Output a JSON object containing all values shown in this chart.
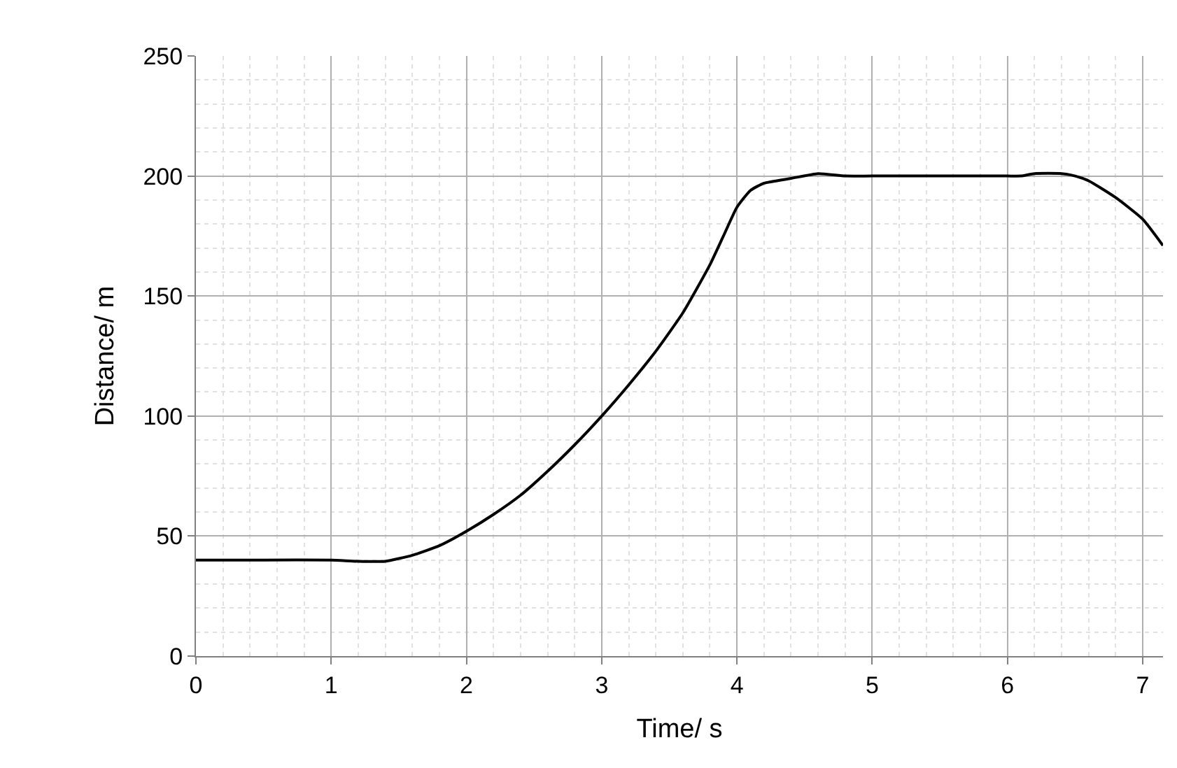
{
  "chart_data": {
    "type": "line",
    "xlabel": "Time/ s",
    "ylabel": "Distance/ m",
    "x": [
      0,
      0.5,
      1,
      1.2,
      1.4,
      1.6,
      1.8,
      2,
      2.2,
      2.4,
      2.6,
      2.8,
      3,
      3.2,
      3.4,
      3.6,
      3.8,
      3.9,
      4,
      4.1,
      4.2,
      4.4,
      4.6,
      4.8,
      5,
      5.5,
      6,
      6.1,
      6.2,
      6.4,
      6.5,
      6.6,
      6.8,
      7,
      7.15
    ],
    "series": [
      {
        "color": "#000000",
        "values": [
          40,
          40,
          40,
          39.5,
          39.5,
          42,
          46,
          52,
          59,
          67,
          77,
          88,
          100,
          113,
          127,
          143,
          163,
          175,
          187,
          194,
          197,
          199,
          201,
          200,
          200,
          200,
          200,
          200,
          201,
          201,
          200,
          198,
          191,
          182,
          171
        ]
      }
    ],
    "xlim": [
      0,
      7.15
    ],
    "xticks": [
      0,
      1,
      2,
      3,
      4,
      5,
      6,
      7
    ],
    "ylim": [
      0,
      250
    ],
    "yticks": [
      0,
      50,
      100,
      150,
      200,
      250
    ],
    "grid": true,
    "marker": "none",
    "line_style": "solid"
  }
}
